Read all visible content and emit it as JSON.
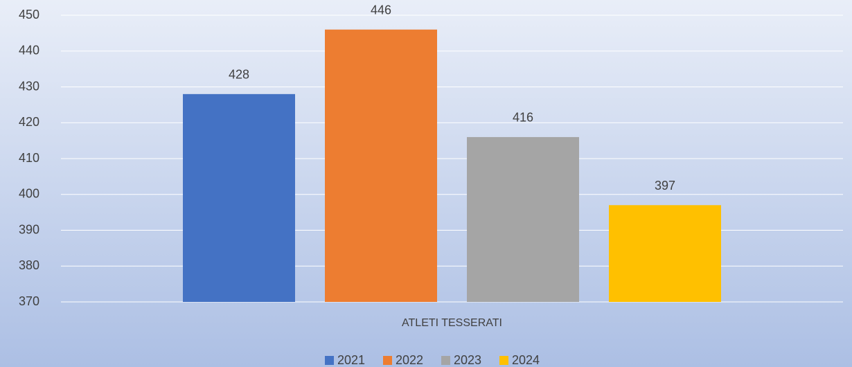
{
  "chart_data": {
    "type": "bar",
    "categories": [
      "ATLETI TESSERATI"
    ],
    "series": [
      {
        "name": "2021",
        "color": "#4472c4",
        "values": [
          428
        ]
      },
      {
        "name": "2022",
        "color": "#ed7d31",
        "values": [
          446
        ]
      },
      {
        "name": "2023",
        "color": "#a5a5a5",
        "values": [
          416
        ]
      },
      {
        "name": "2024",
        "color": "#ffc000",
        "values": [
          397
        ]
      }
    ],
    "ylim": [
      370,
      450
    ],
    "yticks": [
      370,
      380,
      390,
      400,
      410,
      420,
      430,
      440,
      450
    ],
    "grid": true,
    "legend": "bottom"
  }
}
